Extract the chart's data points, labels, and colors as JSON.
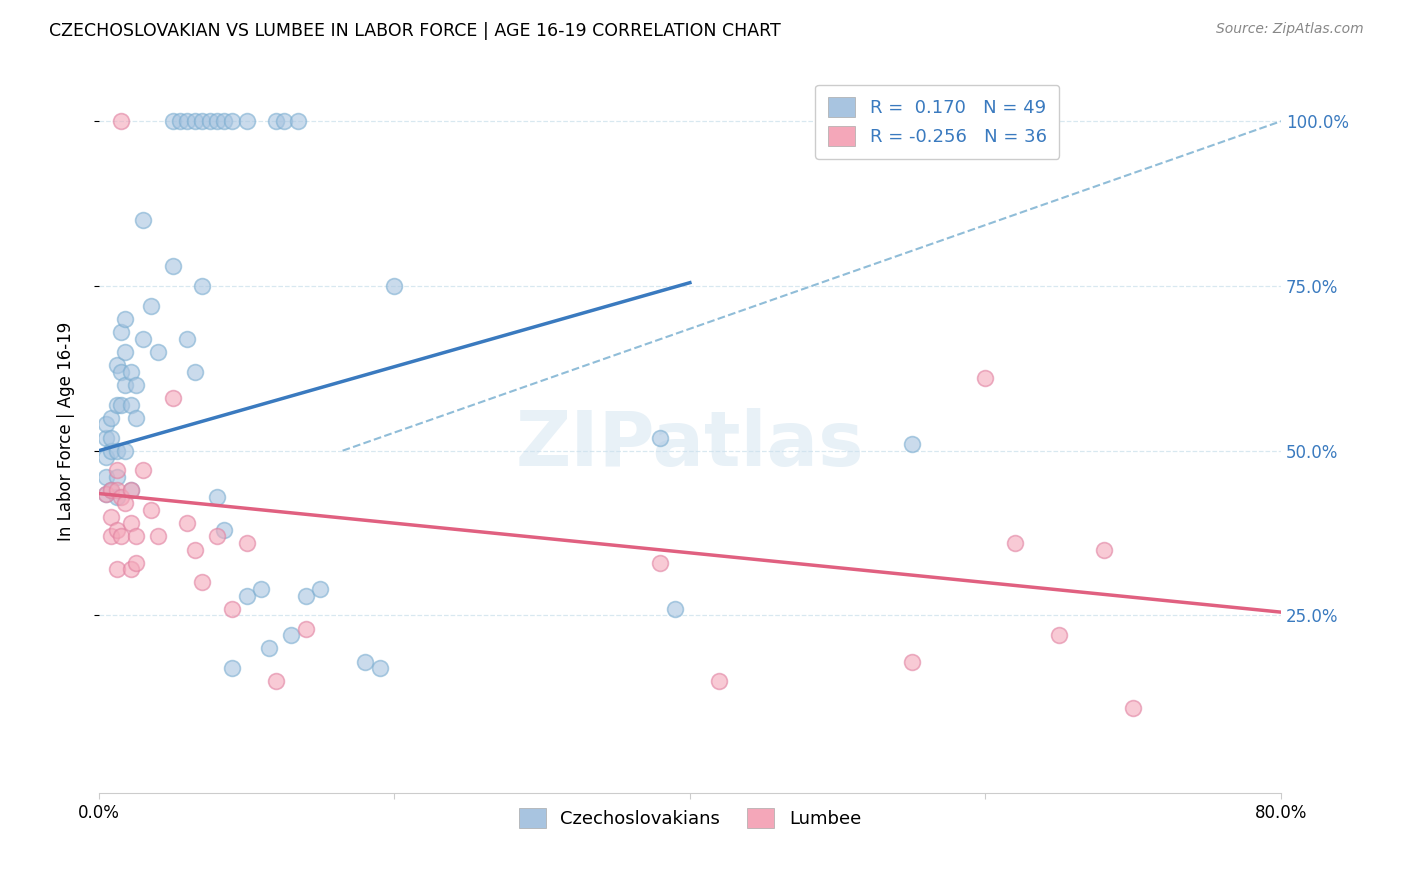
{
  "title": "CZECHOSLOVAKIAN VS LUMBEE IN LABOR FORCE | AGE 16-19 CORRELATION CHART",
  "source": "Source: ZipAtlas.com",
  "ylabel": "In Labor Force | Age 16-19",
  "xlim": [
    0.0,
    0.8
  ],
  "ylim": [
    -0.02,
    1.08
  ],
  "yticks": [
    0.25,
    0.5,
    0.75,
    1.0
  ],
  "yticklabels": [
    "25.0%",
    "50.0%",
    "75.0%",
    "100.0%"
  ],
  "czech_color": "#a8c4e0",
  "czech_edge_color": "#7aadd0",
  "lumbee_color": "#f4a7b9",
  "lumbee_edge_color": "#e080a0",
  "czech_line_color": "#3a7abf",
  "lumbee_line_color": "#e06080",
  "dash_line_color": "#90bdd8",
  "legend_r_czech": "R =  0.170",
  "legend_n_czech": "N = 49",
  "legend_r_lumbee": "R = -0.256",
  "legend_n_lumbee": "N = 36",
  "czech_line_x0": 0.0,
  "czech_line_y0": 0.5,
  "czech_line_x1": 0.4,
  "czech_line_y1": 0.755,
  "lumbee_line_x0": 0.0,
  "lumbee_line_y0": 0.435,
  "lumbee_line_x1": 0.8,
  "lumbee_line_y1": 0.255,
  "dash_line_x0": 0.165,
  "dash_line_y0": 0.5,
  "dash_line_x1": 0.8,
  "dash_line_y1": 1.0,
  "czech_x": [
    0.005,
    0.005,
    0.005,
    0.005,
    0.005,
    0.008,
    0.008,
    0.008,
    0.008,
    0.012,
    0.012,
    0.012,
    0.012,
    0.012,
    0.015,
    0.015,
    0.015,
    0.018,
    0.018,
    0.018,
    0.018,
    0.022,
    0.022,
    0.022,
    0.025,
    0.025,
    0.03,
    0.03,
    0.035,
    0.04,
    0.05,
    0.06,
    0.065,
    0.07,
    0.08,
    0.085,
    0.09,
    0.1,
    0.11,
    0.115,
    0.13,
    0.14,
    0.15,
    0.18,
    0.19,
    0.2,
    0.38,
    0.39,
    0.55
  ],
  "czech_y": [
    0.435,
    0.46,
    0.49,
    0.52,
    0.54,
    0.5,
    0.52,
    0.55,
    0.44,
    0.63,
    0.57,
    0.5,
    0.46,
    0.43,
    0.68,
    0.62,
    0.57,
    0.7,
    0.65,
    0.6,
    0.5,
    0.62,
    0.57,
    0.44,
    0.6,
    0.55,
    0.85,
    0.67,
    0.72,
    0.65,
    0.78,
    0.67,
    0.62,
    0.75,
    0.43,
    0.38,
    0.17,
    0.28,
    0.29,
    0.2,
    0.22,
    0.28,
    0.29,
    0.18,
    0.17,
    0.75,
    0.52,
    0.26,
    0.51
  ],
  "lumbee_x": [
    0.005,
    0.008,
    0.008,
    0.008,
    0.012,
    0.012,
    0.012,
    0.012,
    0.015,
    0.015,
    0.018,
    0.022,
    0.022,
    0.022,
    0.025,
    0.025,
    0.03,
    0.035,
    0.04,
    0.05,
    0.06,
    0.065,
    0.07,
    0.08,
    0.09,
    0.1,
    0.12,
    0.14,
    0.38,
    0.42,
    0.55,
    0.6,
    0.62,
    0.65,
    0.68,
    0.7
  ],
  "lumbee_y": [
    0.435,
    0.44,
    0.4,
    0.37,
    0.47,
    0.44,
    0.38,
    0.32,
    0.43,
    0.37,
    0.42,
    0.44,
    0.39,
    0.32,
    0.37,
    0.33,
    0.47,
    0.41,
    0.37,
    0.58,
    0.39,
    0.35,
    0.3,
    0.37,
    0.26,
    0.36,
    0.15,
    0.23,
    0.33,
    0.15,
    0.18,
    0.61,
    0.36,
    0.22,
    0.35,
    0.11
  ],
  "czech_top_x": [
    0.05,
    0.055,
    0.06,
    0.065,
    0.07,
    0.075,
    0.08,
    0.085,
    0.09,
    0.1,
    0.12,
    0.125,
    0.135
  ],
  "czech_top_y": [
    1.0,
    1.0,
    1.0,
    1.0,
    1.0,
    1.0,
    1.0,
    1.0,
    1.0,
    1.0,
    1.0,
    1.0,
    1.0
  ],
  "lumbee_top_x": [
    0.015
  ],
  "lumbee_top_y": [
    1.0
  ],
  "watermark": "ZIPatlas",
  "grid_color": "#d8e8f0",
  "grid_style": "--",
  "marker_size": 130,
  "marker_alpha": 0.6
}
